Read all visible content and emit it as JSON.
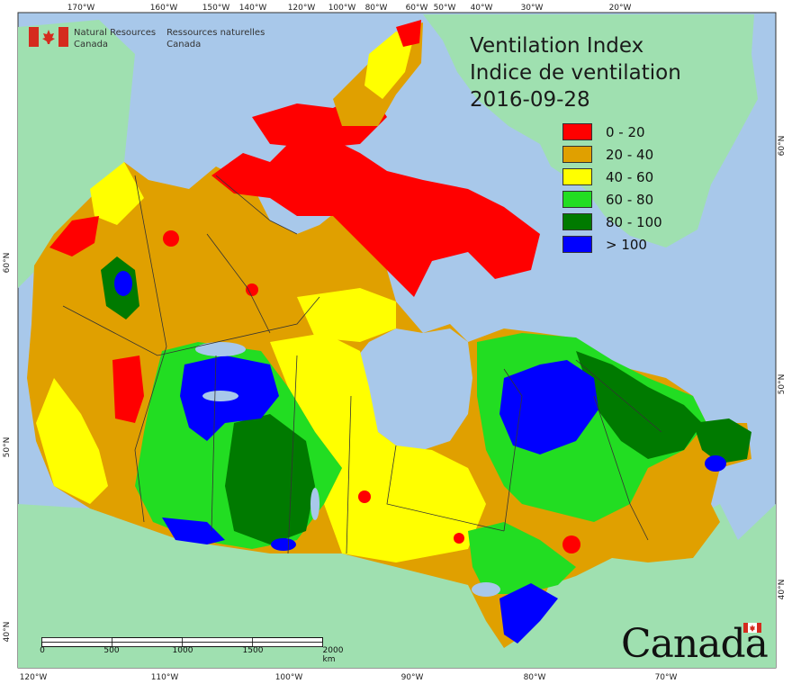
{
  "map": {
    "title_en": "Ventilation Index",
    "title_fr": "Indice de ventilation",
    "date": "2016-09-28"
  },
  "agency": {
    "name_en_line1": "Natural Resources",
    "name_en_line2": "Canada",
    "name_fr_line1": "Ressources naturelles",
    "name_fr_line2": "Canada"
  },
  "wordmark": "Canada",
  "legend": [
    {
      "label": "0 - 20",
      "color": "#ff0000"
    },
    {
      "label": "20 - 40",
      "color": "#e0a000"
    },
    {
      "label": "40 - 60",
      "color": "#ffff00"
    },
    {
      "label": "60 - 80",
      "color": "#22dd22"
    },
    {
      "label": "80 - 100",
      "color": "#007a00"
    },
    {
      "label": "> 100",
      "color": "#0000ff"
    }
  ],
  "graticule": {
    "top_labels": [
      "170°W",
      "160°W",
      "150°W",
      "140°W",
      "120°W",
      "100°W",
      "80°W",
      "60°W",
      "50°W",
      "40°W",
      "30°W",
      "20°W"
    ],
    "bottom_labels": [
      "120°W",
      "110°W",
      "100°W",
      "90°W",
      "80°W",
      "70°W"
    ],
    "left_labels": [
      "60°N",
      "50°N",
      "40°N"
    ],
    "right_labels": [
      "60°N",
      "50°N",
      "40°N"
    ]
  },
  "scalebar": {
    "labels": [
      "0",
      "500",
      "1000",
      "1500",
      "2000 km"
    ]
  },
  "colors": {
    "ocean": "#a8c8ea",
    "foreign_land": "#9fe0b0"
  }
}
